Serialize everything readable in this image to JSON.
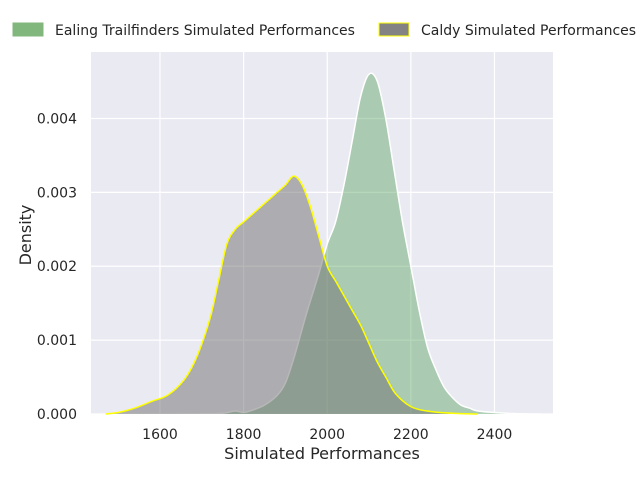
{
  "chart_data": {
    "type": "area",
    "title": "",
    "xlabel": "Simulated Performances",
    "ylabel": "Density",
    "xlim": [
      1435,
      2540
    ],
    "ylim": [
      0,
      0.0049
    ],
    "grid": true,
    "legend_position": "top",
    "x_ticks": [
      1600,
      1800,
      2000,
      2200,
      2400
    ],
    "x_tick_labels": [
      "1600",
      "1800",
      "2000",
      "2200",
      "2400"
    ],
    "y_ticks": [
      0,
      0.001,
      0.002,
      0.003,
      0.004
    ],
    "y_tick_labels": [
      "0.000",
      "0.001",
      "0.002",
      "0.003",
      "0.004"
    ],
    "series": [
      {
        "name": "Ealing Trailfinders Simulated Performances",
        "fill": "#4c9a52",
        "fill_opacity": 0.4,
        "line": "#ffffff",
        "points": [
          [
            1640,
            0
          ],
          [
            1700,
            2e-06
          ],
          [
            1750,
            1e-05
          ],
          [
            1780,
            4e-05
          ],
          [
            1800,
            2e-05
          ],
          [
            1820,
            5e-05
          ],
          [
            1850,
            0.00012
          ],
          [
            1880,
            0.00025
          ],
          [
            1900,
            0.00042
          ],
          [
            1920,
            0.00075
          ],
          [
            1950,
            0.00135
          ],
          [
            1980,
            0.0019
          ],
          [
            2000,
            0.0023
          ],
          [
            2020,
            0.0026
          ],
          [
            2040,
            0.0031
          ],
          [
            2060,
            0.0037
          ],
          [
            2080,
            0.0043
          ],
          [
            2100,
            0.0046
          ],
          [
            2120,
            0.0045
          ],
          [
            2140,
            0.004
          ],
          [
            2160,
            0.0033
          ],
          [
            2180,
            0.0026
          ],
          [
            2200,
            0.002
          ],
          [
            2220,
            0.0014
          ],
          [
            2240,
            0.0009
          ],
          [
            2260,
            0.0006
          ],
          [
            2280,
            0.00036
          ],
          [
            2300,
            0.00022
          ],
          [
            2320,
            0.00012
          ],
          [
            2340,
            8e-05
          ],
          [
            2360,
            4e-05
          ],
          [
            2400,
            2e-05
          ],
          [
            2450,
            5e-06
          ],
          [
            2510,
            0
          ]
        ]
      },
      {
        "name": "Caldy Simulated Performances",
        "fill": "#707070",
        "fill_opacity": 0.5,
        "line": "#ffff00",
        "points": [
          [
            1470,
            0
          ],
          [
            1500,
            2e-05
          ],
          [
            1540,
            8e-05
          ],
          [
            1580,
            0.00017
          ],
          [
            1620,
            0.00026
          ],
          [
            1660,
            0.00048
          ],
          [
            1690,
            0.0008
          ],
          [
            1720,
            0.0013
          ],
          [
            1740,
            0.0018
          ],
          [
            1760,
            0.0023
          ],
          [
            1780,
            0.0025
          ],
          [
            1800,
            0.0026
          ],
          [
            1820,
            0.0027
          ],
          [
            1840,
            0.0028
          ],
          [
            1860,
            0.0029
          ],
          [
            1880,
            0.003
          ],
          [
            1900,
            0.0031
          ],
          [
            1920,
            0.00322
          ],
          [
            1940,
            0.0031
          ],
          [
            1960,
            0.0028
          ],
          [
            1980,
            0.0024
          ],
          [
            2000,
            0.002
          ],
          [
            2020,
            0.0018
          ],
          [
            2040,
            0.0016
          ],
          [
            2060,
            0.0014
          ],
          [
            2080,
            0.0012
          ],
          [
            2100,
            0.00095
          ],
          [
            2120,
            0.0007
          ],
          [
            2140,
            0.0005
          ],
          [
            2160,
            0.0003
          ],
          [
            2180,
            0.00018
          ],
          [
            2200,
            0.0001
          ],
          [
            2220,
            6e-05
          ],
          [
            2240,
            4e-05
          ],
          [
            2270,
            2e-05
          ],
          [
            2320,
            5e-06
          ],
          [
            2360,
            0
          ]
        ]
      }
    ]
  }
}
